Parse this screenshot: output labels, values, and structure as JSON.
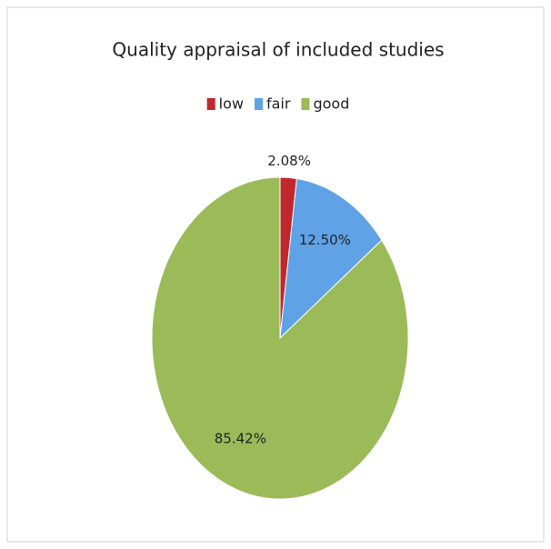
{
  "chart_data": {
    "type": "pie",
    "title": "Quality appraisal of included studies",
    "categories": [
      "low",
      "fair",
      "good"
    ],
    "values": [
      2.08,
      12.5,
      85.42
    ],
    "value_labels": [
      "2.08%",
      "12.50%",
      "85.42%"
    ],
    "colors": [
      "#c0282d",
      "#5fa3e6",
      "#9bbb59"
    ],
    "legend": "top"
  }
}
